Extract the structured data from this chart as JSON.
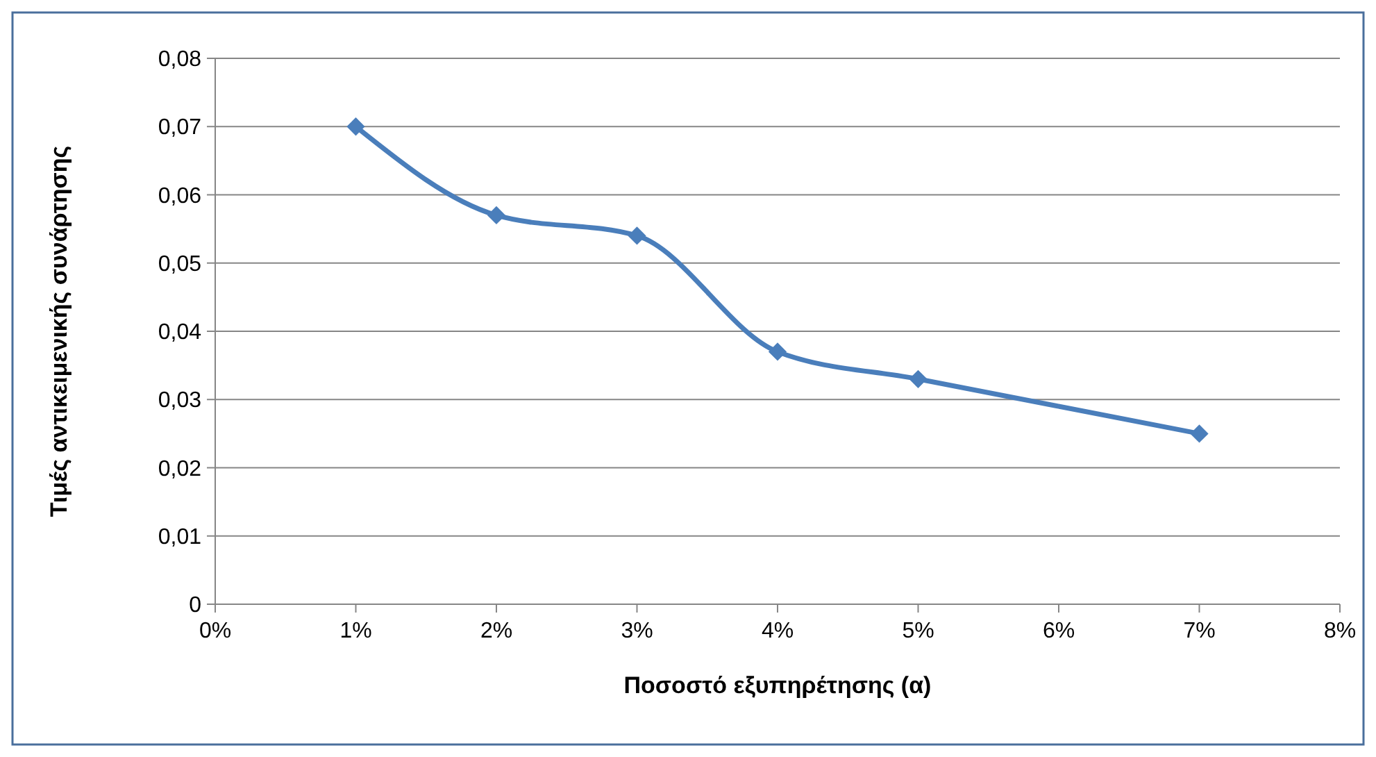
{
  "chart_data": {
    "type": "line",
    "xlabel": "Ποσοστό εξυπηρέτησης (α)",
    "ylabel": "Τιμές αντικειμενικής συνάρτησης",
    "x": [
      1,
      2,
      3,
      4,
      5,
      7
    ],
    "series": [
      {
        "color": "#4a7ebb",
        "values": [
          0.07,
          0.057,
          0.054,
          0.037,
          0.033,
          0.025
        ]
      }
    ],
    "xlim": [
      0,
      8
    ],
    "xticks": [
      {
        "value": 0,
        "label": "0%"
      },
      {
        "value": 1,
        "label": "1%"
      },
      {
        "value": 2,
        "label": "2%"
      },
      {
        "value": 3,
        "label": "3%"
      },
      {
        "value": 4,
        "label": "4%"
      },
      {
        "value": 5,
        "label": "5%"
      },
      {
        "value": 6,
        "label": "6%"
      },
      {
        "value": 7,
        "label": "7%"
      },
      {
        "value": 8,
        "label": "8%"
      }
    ],
    "ylim": [
      0,
      0.08
    ],
    "yticks": [
      0,
      {
        "value": 0.01,
        "label": "0,01"
      },
      {
        "value": 0.02,
        "label": "0,02"
      },
      {
        "value": 0.03,
        "label": "0,03"
      },
      {
        "value": 0.04,
        "label": "0,04"
      },
      {
        "value": 0.05,
        "label": "0,05"
      },
      {
        "value": 0.06,
        "label": "0,06"
      },
      {
        "value": 0.07,
        "label": "0,07"
      },
      {
        "value": 0.08,
        "label": "0,08"
      }
    ],
    "grid": "y",
    "marker": "diamond",
    "line_style": "solid"
  }
}
